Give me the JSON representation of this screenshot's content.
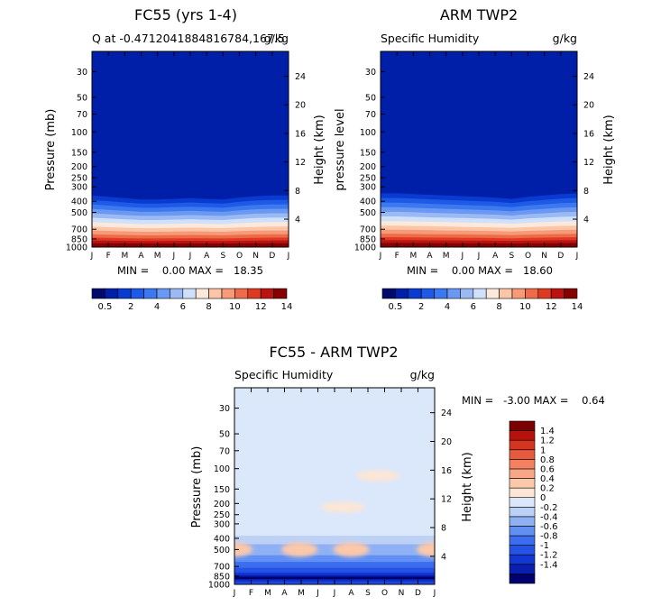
{
  "colors": {
    "seq": [
      "#000a6b",
      "#001fa8",
      "#0a3bd1",
      "#1e5ae6",
      "#3c78f0",
      "#6a98f2",
      "#9bbaf4",
      "#cfe0fb",
      "#fde8dc",
      "#fbc5a8",
      "#f69a78",
      "#ee6b4a",
      "#de3a22",
      "#bb1212",
      "#850000"
    ],
    "div": [
      "#00006e",
      "#0a1fb0",
      "#1237d2",
      "#2552e6",
      "#3c6cef",
      "#6290f2",
      "#8fb1f4",
      "#bdd1f6",
      "#dbe7fa",
      "#fde6d5",
      "#fbc8aa",
      "#f8a685",
      "#f38060",
      "#e85a3d",
      "#d43420",
      "#b5120c",
      "#7c0000"
    ]
  },
  "chart_data": [
    {
      "type": "heatmap",
      "title": "FC55 (yrs 1-4)",
      "subtitle_left": "Q at -0.4712041884816784,167.5",
      "subtitle_right": "g/kg",
      "ylabel": "Pressure (mb)",
      "ylabel_right": "Height (km)",
      "x": [
        "J",
        "F",
        "M",
        "A",
        "M",
        "J",
        "J",
        "A",
        "S",
        "O",
        "N",
        "D",
        "J"
      ],
      "y_ticks": [
        30,
        50,
        70,
        100,
        150,
        200,
        250,
        300,
        400,
        500,
        700,
        850,
        1000
      ],
      "height_ticks": [
        24,
        20,
        16,
        12,
        8,
        4
      ],
      "ylim": [
        1000,
        20
      ],
      "stats": "MIN =    0.00 MAX =   18.35",
      "colorbar": {
        "levels": [
          "0.5",
          "2",
          "4",
          "6",
          "8",
          "10",
          "12",
          "14"
        ]
      },
      "moist_top_pressure": [
        330,
        340,
        350,
        360,
        360,
        355,
        350,
        355,
        360,
        345,
        335,
        330,
        330
      ],
      "surface_max": 18.35
    },
    {
      "type": "heatmap",
      "title": "ARM TWP2",
      "subtitle_left": "Specific Humidity",
      "subtitle_right": "g/kg",
      "ylabel": "pressure  level",
      "ylabel_right": "Height (km)",
      "x": [
        "J",
        "F",
        "M",
        "A",
        "M",
        "J",
        "J",
        "A",
        "S",
        "O",
        "N",
        "D",
        "J"
      ],
      "y_ticks": [
        30,
        50,
        70,
        100,
        150,
        200,
        250,
        300,
        400,
        500,
        700,
        850,
        1000
      ],
      "height_ticks": [
        24,
        20,
        16,
        12,
        8,
        4
      ],
      "ylim": [
        1000,
        20
      ],
      "stats": "MIN =    0.00 MAX =   18.60",
      "colorbar": {
        "levels": [
          "0.5",
          "2",
          "4",
          "6",
          "8",
          "10",
          "12",
          "14"
        ]
      },
      "moist_top_pressure": [
        315,
        315,
        320,
        325,
        330,
        335,
        340,
        345,
        355,
        340,
        330,
        320,
        315
      ],
      "surface_max": 18.6
    },
    {
      "type": "heatmap",
      "title": "FC55 - ARM TWP2",
      "subtitle_left": "Specific Humidity",
      "subtitle_right": "g/kg",
      "ylabel": "Pressure (mb)",
      "ylabel_right": "Height (km)",
      "x": [
        "J",
        "F",
        "M",
        "A",
        "M",
        "J",
        "J",
        "A",
        "S",
        "O",
        "N",
        "D",
        "J"
      ],
      "y_ticks": [
        30,
        50,
        70,
        100,
        150,
        200,
        250,
        300,
        400,
        500,
        700,
        850,
        1000
      ],
      "height_ticks": [
        24,
        20,
        16,
        12,
        8,
        4
      ],
      "ylim": [
        1000,
        20
      ],
      "stats": "MIN =   -3.00 MAX =    0.64",
      "colorbar": {
        "levels": [
          "1.4",
          "1.2",
          "1",
          "0.8",
          "0.6",
          "0.4",
          "0.2",
          "0",
          "-0.2",
          "-0.4",
          "-0.6",
          "-0.8",
          "-1",
          "-1.2",
          "-1.4"
        ]
      },
      "positive_blobs": [
        {
          "month": 0.0,
          "pressure": 500,
          "value": 0.6
        },
        {
          "month": 3.9,
          "pressure": 500,
          "value": 0.5
        },
        {
          "month": 7.0,
          "pressure": 500,
          "value": 0.6
        },
        {
          "month": 12.0,
          "pressure": 500,
          "value": 0.6
        },
        {
          "month": 8.6,
          "pressure": 115,
          "value": 0.3
        },
        {
          "month": 6.5,
          "pressure": 215,
          "value": 0.2
        }
      ]
    }
  ]
}
